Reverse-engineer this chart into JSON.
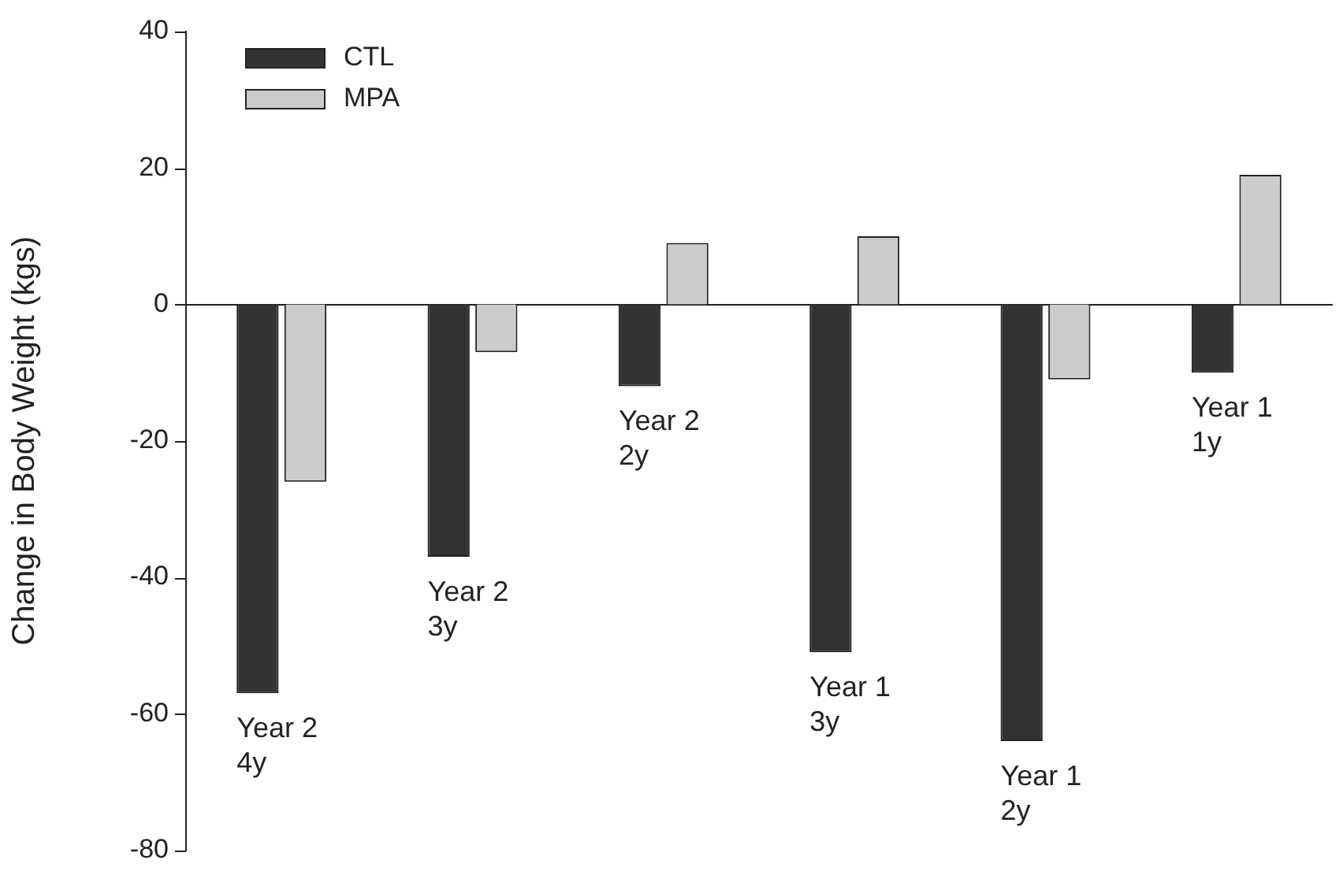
{
  "chart_data": {
    "type": "bar",
    "ylabel": "Change in Body Weight (kgs)",
    "categories": [
      "Year 2\n4y",
      "Year 2\n3y",
      "Year 2\n2y",
      "Year 1\n3y",
      "Year 1\n2y",
      "Year 1\n1y"
    ],
    "series": [
      {
        "name": "CTL",
        "color": "#333333",
        "values": [
          -57,
          -37,
          -12,
          -51,
          -64,
          -10
        ]
      },
      {
        "name": "MPA",
        "color": "#cccccc",
        "values": [
          -26,
          -7,
          9,
          10,
          -11,
          19
        ]
      }
    ],
    "ylim": [
      -80,
      40
    ],
    "yticks": [
      -80,
      -60,
      -40,
      -20,
      0,
      20,
      40
    ],
    "legend": "top left"
  }
}
